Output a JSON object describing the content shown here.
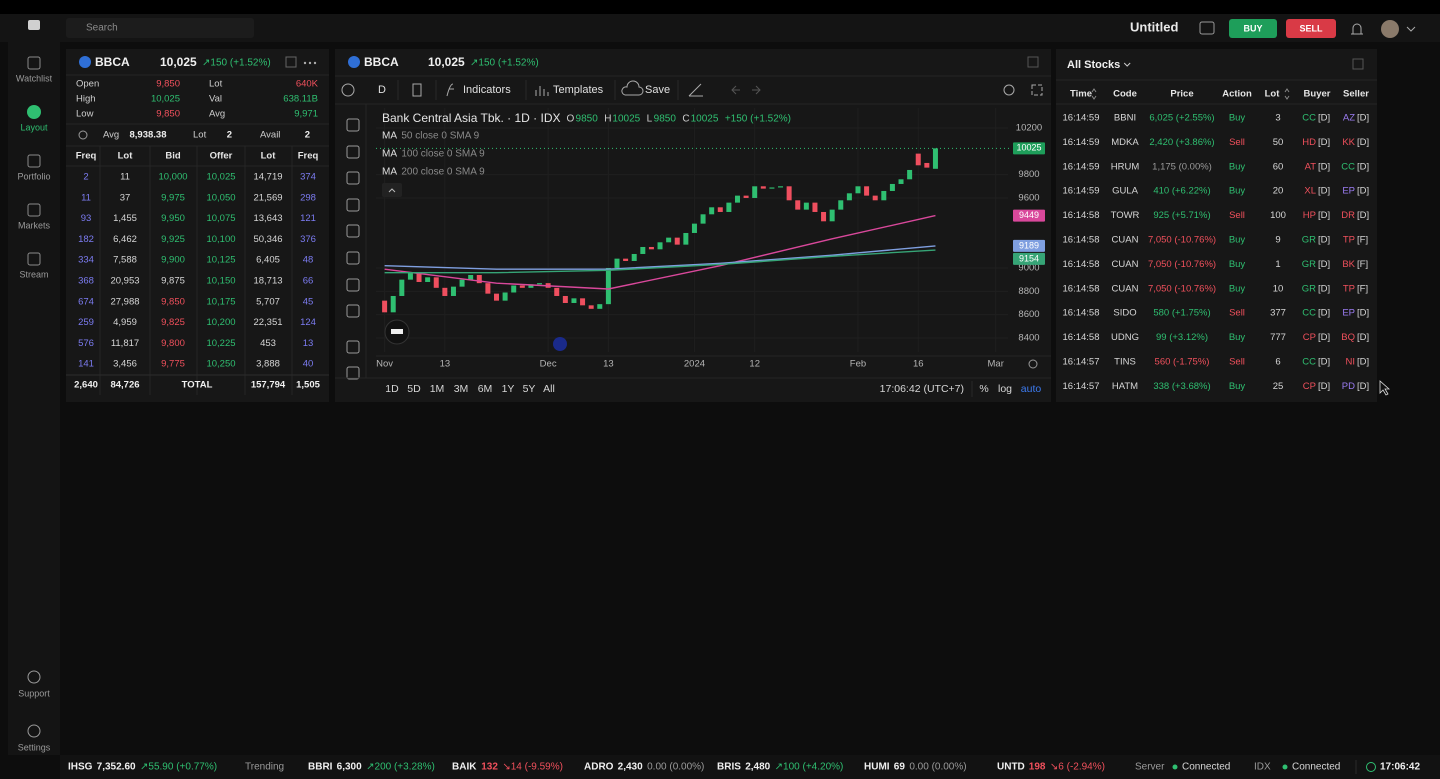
{
  "top_bar": {
    "search": "Search",
    "title": "Untitled",
    "buy": "BUY",
    "sell": "SELL"
  },
  "sidebar": {
    "items": [
      "Watchlist",
      "Layout",
      "Portfolio",
      "Markets",
      "Stream"
    ],
    "bottom": [
      "Support",
      "Settings"
    ]
  },
  "colors": {
    "up": "#2fbf71",
    "down": "#f0505c",
    "flat": "#9a9a9a",
    "freq": "#7c7cf2",
    "text": "#d6d6d6"
  },
  "orderbook": {
    "symbol": "BBCA",
    "price": "10,025",
    "change": "↗150 (+1.52%)",
    "stats": [
      {
        "label": "Open",
        "value": "9,850",
        "tone": "down"
      },
      {
        "label": "High",
        "value": "10,025",
        "tone": "up"
      },
      {
        "label": "Low",
        "value": "9,850",
        "tone": "down"
      },
      {
        "label": "Lot",
        "value": "640K",
        "tone": "down"
      },
      {
        "label": "Val",
        "value": "638.11B",
        "tone": "up"
      },
      {
        "label": "Avg",
        "value": "9,971",
        "tone": "up"
      }
    ],
    "avg": {
      "labels": [
        "Avg",
        "Lot",
        "Avail"
      ],
      "values": [
        "8,938.38",
        "2",
        "2"
      ]
    },
    "headers": [
      "Freq",
      "Lot",
      "Bid",
      "Offer",
      "Lot",
      "Freq"
    ],
    "rows": [
      [
        "2",
        "11",
        "10,000",
        "10,025",
        "14,719",
        "374"
      ],
      [
        "11",
        "37",
        "9,975",
        "10,050",
        "21,569",
        "298"
      ],
      [
        "93",
        "1,455",
        "9,950",
        "10,075",
        "13,643",
        "121"
      ],
      [
        "182",
        "6,462",
        "9,925",
        "10,100",
        "50,346",
        "376"
      ],
      [
        "334",
        "7,588",
        "9,900",
        "10,125",
        "6,405",
        "48"
      ],
      [
        "368",
        "20,953",
        "9,875",
        "10,150",
        "18,713",
        "66"
      ],
      [
        "674",
        "27,988",
        "9,850",
        "10,175",
        "5,707",
        "45"
      ],
      [
        "259",
        "4,959",
        "9,825",
        "10,200",
        "22,351",
        "124"
      ],
      [
        "576",
        "11,817",
        "9,800",
        "10,225",
        "453",
        "13"
      ],
      [
        "141",
        "3,456",
        "9,775",
        "10,250",
        "3,888",
        "40"
      ]
    ],
    "bid_tones": [
      "up",
      "up",
      "up",
      "up",
      "up",
      "text",
      "down",
      "down",
      "down",
      "down"
    ],
    "total": [
      "2,640",
      "84,726",
      "TOTAL",
      "157,794",
      "1,505"
    ]
  },
  "chart": {
    "type": "candlestick",
    "symbol": "BBCA",
    "price": "10,025",
    "change": "↗150 (+1.52%)",
    "toolbar": {
      "interval": "D",
      "indicators": "Indicators",
      "templates": "Templates",
      "save": "Save"
    },
    "title": "Bank Central Asia Tbk. · 1D · IDX",
    "ohlc": [
      {
        "key": "O",
        "value": "9850"
      },
      {
        "key": "H",
        "value": "10025"
      },
      {
        "key": "L",
        "value": "9850"
      },
      {
        "key": "C",
        "value": "10025"
      }
    ],
    "ohlc_change": "+150 (+1.52%)",
    "up_color": "#2fbf71",
    "down_color": "#ef4f5f",
    "open": [
      8720,
      8620,
      8760,
      8900,
      8960,
      8880,
      8920,
      8830,
      8760,
      8840,
      8900,
      8940,
      8870,
      8780,
      8720,
      8790,
      8850,
      8830,
      8860,
      8870,
      8830,
      8760,
      8700,
      8740,
      8680,
      8650,
      8690,
      9000,
      9080,
      9060,
      9120,
      9180,
      9160,
      9220,
      9260,
      9200,
      9300,
      9380,
      9460,
      9520,
      9480,
      9560,
      9620,
      9600,
      9700,
      9680,
      9690,
      9700,
      9580,
      9500,
      9560,
      9480,
      9400,
      9500,
      9580,
      9640,
      9700,
      9620,
      9580,
      9660,
      9720,
      9760,
      9980,
      9900,
      9850
    ],
    "close": [
      8620,
      8760,
      8900,
      8960,
      8880,
      8920,
      8830,
      8760,
      8840,
      8900,
      8940,
      8870,
      8780,
      8720,
      8790,
      8850,
      8830,
      8860,
      8870,
      8830,
      8760,
      8700,
      8740,
      8680,
      8650,
      8690,
      9000,
      9080,
      9060,
      9120,
      9180,
      9160,
      9220,
      9260,
      9200,
      9300,
      9380,
      9460,
      9520,
      9480,
      9560,
      9620,
      9600,
      9700,
      9680,
      9690,
      9700,
      9580,
      9500,
      9560,
      9480,
      9400,
      9500,
      9580,
      9640,
      9700,
      9620,
      9580,
      9660,
      9720,
      9760,
      9840,
      9880,
      9860,
      10025
    ],
    "series": [
      {
        "name": "MA",
        "params": "50 close 0 SMA 9",
        "color": "#d9489b",
        "x": [
          0,
          13,
          26,
          39,
          52,
          64
        ],
        "values": [
          8990,
          8870,
          8820,
          9020,
          9250,
          9449
        ]
      },
      {
        "name": "MA",
        "params": "100 close 0 SMA 9",
        "color": "#7f9fe0",
        "x": [
          0,
          13,
          26,
          39,
          52,
          64
        ],
        "values": [
          9020,
          8990,
          8990,
          9040,
          9110,
          9189
        ]
      },
      {
        "name": "MA",
        "params": "200 close 0 SMA 9",
        "color": "#36a476",
        "x": [
          0,
          13,
          26,
          39,
          52,
          64
        ],
        "values": [
          8960,
          8960,
          8980,
          9030,
          9100,
          9154
        ]
      }
    ],
    "xlim": [
      -1,
      71.5
    ],
    "ylim": [
      8280,
      10371
    ],
    "xticks": [
      {
        "value": 0,
        "label": "Nov"
      },
      {
        "value": 7,
        "label": "13"
      },
      {
        "value": 19,
        "label": "Dec"
      },
      {
        "value": 26,
        "label": "13"
      },
      {
        "value": 36,
        "label": "2024"
      },
      {
        "value": 43,
        "label": "12"
      },
      {
        "value": 55,
        "label": "Feb"
      },
      {
        "value": 62,
        "label": "16"
      },
      {
        "value": 71,
        "label": "Mar"
      }
    ],
    "yticks": [
      8400,
      8600,
      8800,
      9000,
      9600,
      9800,
      10200
    ],
    "grid": true,
    "footer": {
      "ranges": [
        "1D",
        "5D",
        "1M",
        "3M",
        "6M",
        "1Y",
        "5Y",
        "All"
      ],
      "time": "17:06:42 (UTC+7)",
      "options": [
        "%",
        "log",
        "auto"
      ]
    }
  },
  "stocks": {
    "title": "All Stocks",
    "headers": [
      "Time",
      "Code",
      "Price",
      "Action",
      "Lot",
      "Buyer",
      "Seller"
    ],
    "rows": [
      {
        "time": "16:14:59",
        "code": "BBNI",
        "price": "6,025 (+2.55%)",
        "price_tone": "up",
        "action": "Buy",
        "action_tone": "up",
        "lot": "3",
        "buyer": "CC",
        "buyer_type": "[D]",
        "seller": "AZ",
        "seller_type": "[D]"
      },
      {
        "time": "16:14:59",
        "code": "MDKA",
        "price": "2,420 (+3.86%)",
        "price_tone": "up",
        "action": "Sell",
        "action_tone": "down",
        "lot": "50",
        "buyer": "HD",
        "buyer_type": "[D]",
        "seller": "KK",
        "seller_type": "[D]"
      },
      {
        "time": "16:14:59",
        "code": "HRUM",
        "price": "1,175 (0.00%)",
        "price_tone": "flat",
        "action": "Buy",
        "action_tone": "up",
        "lot": "60",
        "buyer": "AT",
        "buyer_type": "[D]",
        "seller": "CC",
        "seller_type": "[D]"
      },
      {
        "time": "16:14:59",
        "code": "GULA",
        "price": "410 (+6.22%)",
        "price_tone": "up",
        "action": "Buy",
        "action_tone": "up",
        "lot": "20",
        "buyer": "XL",
        "buyer_type": "[D]",
        "seller": "EP",
        "seller_type": "[D]"
      },
      {
        "time": "16:14:58",
        "code": "TOWR",
        "price": "925 (+5.71%)",
        "price_tone": "up",
        "action": "Sell",
        "action_tone": "down",
        "lot": "100",
        "buyer": "HP",
        "buyer_type": "[D]",
        "seller": "DR",
        "seller_type": "[D]"
      },
      {
        "time": "16:14:58",
        "code": "CUAN",
        "price": "7,050 (-10.76%)",
        "price_tone": "down",
        "action": "Buy",
        "action_tone": "up",
        "lot": "9",
        "buyer": "GR",
        "buyer_type": "[D]",
        "seller": "TP",
        "seller_type": "[F]"
      },
      {
        "time": "16:14:58",
        "code": "CUAN",
        "price": "7,050 (-10.76%)",
        "price_tone": "down",
        "action": "Buy",
        "action_tone": "up",
        "lot": "1",
        "buyer": "GR",
        "buyer_type": "[D]",
        "seller": "BK",
        "seller_type": "[F]"
      },
      {
        "time": "16:14:58",
        "code": "CUAN",
        "price": "7,050 (-10.76%)",
        "price_tone": "down",
        "action": "Buy",
        "action_tone": "up",
        "lot": "10",
        "buyer": "GR",
        "buyer_type": "[D]",
        "seller": "TP",
        "seller_type": "[F]"
      },
      {
        "time": "16:14:58",
        "code": "SIDO",
        "price": "580 (+1.75%)",
        "price_tone": "up",
        "action": "Sell",
        "action_tone": "down",
        "lot": "377",
        "buyer": "CC",
        "buyer_type": "[D]",
        "seller": "EP",
        "seller_type": "[D]"
      },
      {
        "time": "16:14:58",
        "code": "UDNG",
        "price": "99 (+3.12%)",
        "price_tone": "up",
        "action": "Buy",
        "action_tone": "up",
        "lot": "777",
        "buyer": "CP",
        "buyer_type": "[D]",
        "seller": "BQ",
        "seller_type": "[D]"
      },
      {
        "time": "16:14:57",
        "code": "TINS",
        "price": "560 (-1.75%)",
        "price_tone": "down",
        "action": "Sell",
        "action_tone": "down",
        "lot": "6",
        "buyer": "CC",
        "buyer_type": "[D]",
        "seller": "NI",
        "seller_type": "[D]"
      },
      {
        "time": "16:14:57",
        "code": "HATM",
        "price": "338 (+3.68%)",
        "price_tone": "up",
        "action": "Buy",
        "action_tone": "up",
        "lot": "25",
        "buyer": "CP",
        "buyer_type": "[D]",
        "seller": "PD",
        "seller_type": "[D]"
      }
    ],
    "broker_colors": {
      "CC": "#2fbf71",
      "HD": "#f0505c",
      "AT": "#f0505c",
      "XL": "#f0505c",
      "HP": "#f0505c",
      "GR": "#2fbf71",
      "CP": "#f0505c",
      "AZ": "#9b7cf2",
      "KK": "#f0505c",
      "EP": "#9b7cf2",
      "DR": "#f0505c",
      "TP": "#f0505c",
      "BK": "#f0505c",
      "BQ": "#f0505c",
      "NI": "#f0505c",
      "PD": "#9b7cf2"
    }
  },
  "ticker": {
    "items": [
      {
        "code": "IHSG",
        "price": "7,352.60",
        "change": "↗55.90 (+0.77%)",
        "tone": "up"
      },
      {
        "code": "BBRI",
        "price": "6,300",
        "change": "↗200 (+3.28%)",
        "tone": "up"
      },
      {
        "code": "BAIK",
        "price": "132",
        "change": "↘14 (-9.59%)",
        "tone": "down"
      },
      {
        "code": "ADRO",
        "price": "2,430",
        "change": "0.00 (0.00%)",
        "tone": "flat"
      },
      {
        "code": "BRIS",
        "price": "2,480",
        "change": "↗100 (+4.20%)",
        "tone": "up"
      },
      {
        "code": "HUMI",
        "price": "69",
        "change": "0.00 (0.00%)",
        "tone": "flat"
      },
      {
        "code": "UNTD",
        "price": "198",
        "change": "↘6 (-2.94%)",
        "tone": "down"
      }
    ],
    "trending": "Trending",
    "status": [
      {
        "label": "Server",
        "value": "Connected"
      },
      {
        "label": "IDX",
        "value": "Connected"
      }
    ],
    "time": "17:06:42"
  }
}
